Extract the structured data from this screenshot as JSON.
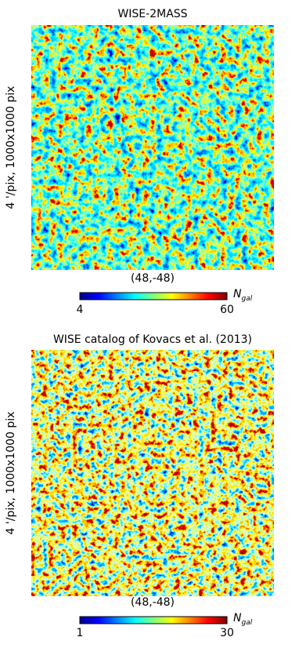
{
  "chart_data": [
    {
      "type": "heatmap",
      "title": "WISE-2MASS",
      "xlabel": "(48,-48)",
      "ylabel": "4 '/pix,  1000x1000 pix",
      "colormap": "jet",
      "colorbar": {
        "lim": [
          4,
          60
        ],
        "ticks": [
          4,
          60
        ],
        "label": {
          "main": "N",
          "sub": "gal"
        }
      }
    },
    {
      "type": "heatmap",
      "title": "WISE catalog of Kovacs et al. (2013)",
      "xlabel": "(48,-48)",
      "ylabel": "4 '/pix,  1000x1000 pix",
      "colormap": "jet",
      "colorbar": {
        "lim": [
          1,
          30
        ],
        "ticks": [
          1,
          30
        ],
        "label": {
          "main": "N",
          "sub": "gal"
        }
      }
    }
  ]
}
